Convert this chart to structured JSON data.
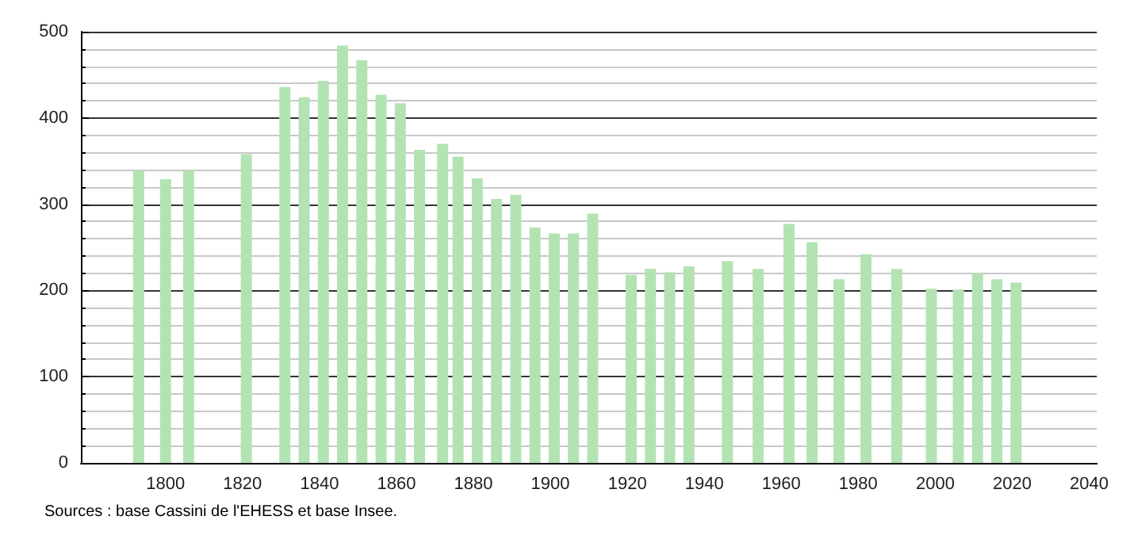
{
  "chart_data": {
    "type": "bar",
    "x": [
      1793,
      1800,
      1806,
      1821,
      1831,
      1836,
      1841,
      1846,
      1851,
      1856,
      1861,
      1866,
      1872,
      1876,
      1881,
      1886,
      1891,
      1896,
      1901,
      1906,
      1911,
      1921,
      1926,
      1931,
      1936,
      1946,
      1954,
      1962,
      1968,
      1975,
      1982,
      1990,
      1999,
      2006,
      2011,
      2016,
      2021
    ],
    "values": [
      339,
      329,
      339,
      358,
      436,
      424,
      443,
      484,
      467,
      427,
      417,
      363,
      370,
      355,
      330,
      306,
      311,
      273,
      266,
      266,
      289,
      218,
      225,
      221,
      228,
      234,
      225,
      277,
      256,
      213,
      242,
      225,
      202,
      201,
      220,
      213,
      209
    ],
    "color": "#b3e3b3",
    "xlim": [
      1778,
      2042
    ],
    "xticks": [
      1800,
      1820,
      1840,
      1860,
      1880,
      1900,
      1920,
      1940,
      1960,
      1980,
      2000,
      2020,
      2040
    ],
    "ylim": [
      0,
      500
    ],
    "yticks": [
      0,
      100,
      200,
      300,
      400,
      500
    ],
    "grid": "y",
    "annotations": [
      "Sources : base Cassini de l'EHESS et base Insee."
    ]
  }
}
